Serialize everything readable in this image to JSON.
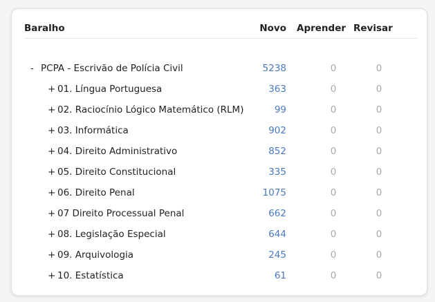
{
  "header": {
    "deck": "Baralho",
    "new": "Novo",
    "learn": "Aprender",
    "review": "Revisar"
  },
  "rows": [
    {
      "toggle": "-",
      "name": "PCPA - Escrivão de Polícia Civil",
      "new": 5238,
      "learn": 0,
      "review": 0
    },
    {
      "toggle": "+",
      "name": "01. Língua Portuguesa",
      "new": 363,
      "learn": 0,
      "review": 0
    },
    {
      "toggle": "+",
      "name": "02. Raciocínio Lógico Matemático (RLM)",
      "new": 99,
      "learn": 0,
      "review": 0
    },
    {
      "toggle": "+",
      "name": "03. Informática",
      "new": 902,
      "learn": 0,
      "review": 0
    },
    {
      "toggle": "+",
      "name": "04. Direito Administrativo",
      "new": 852,
      "learn": 0,
      "review": 0
    },
    {
      "toggle": "+",
      "name": "05. Direito Constitucional",
      "new": 335,
      "learn": 0,
      "review": 0
    },
    {
      "toggle": "+",
      "name": "06. Direito Penal",
      "new": 1075,
      "learn": 0,
      "review": 0
    },
    {
      "toggle": "+",
      "name": "07 Direito Processual Penal",
      "new": 662,
      "learn": 0,
      "review": 0
    },
    {
      "toggle": "+",
      "name": "08. Legislação Especial",
      "new": 644,
      "learn": 0,
      "review": 0
    },
    {
      "toggle": "+",
      "name": "09. Arquivologia",
      "new": 245,
      "learn": 0,
      "review": 0
    },
    {
      "toggle": "+",
      "name": "10. Estatística",
      "new": 61,
      "learn": 0,
      "review": 0
    }
  ]
}
